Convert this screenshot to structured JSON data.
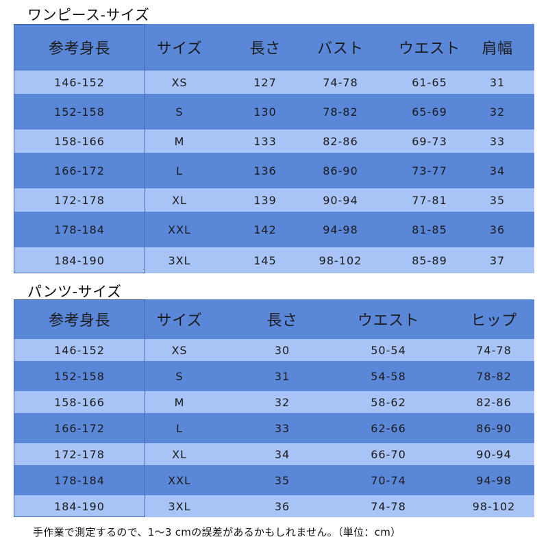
{
  "onepiece": {
    "title": "ワンピース-サイズ",
    "headers": [
      "参考身長",
      "サイズ",
      "長さ",
      "バスト",
      "ウエスト",
      "肩幅"
    ],
    "rows": [
      [
        "146-152",
        "XS",
        "127",
        "74-78",
        "61-65",
        "31"
      ],
      [
        "152-158",
        "S",
        "130",
        "78-82",
        "65-69",
        "32"
      ],
      [
        "158-166",
        "M",
        "133",
        "82-86",
        "69-73",
        "33"
      ],
      [
        "166-172",
        "L",
        "136",
        "86-90",
        "73-77",
        "34"
      ],
      [
        "172-178",
        "XL",
        "139",
        "90-94",
        "77-81",
        "35"
      ],
      [
        "178-184",
        "XXL",
        "142",
        "94-98",
        "81-85",
        "36"
      ],
      [
        "184-190",
        "3XL",
        "145",
        "98-102",
        "85-89",
        "37"
      ]
    ]
  },
  "pants": {
    "title": "パンツ-サイズ",
    "headers": [
      "参考身長",
      "サイズ",
      "長さ",
      "ウエスト",
      "ヒップ"
    ],
    "rows": [
      [
        "146-152",
        "XS",
        "30",
        "50-54",
        "74-78"
      ],
      [
        "152-158",
        "S",
        "31",
        "54-58",
        "78-82"
      ],
      [
        "158-166",
        "M",
        "32",
        "58-62",
        "82-86"
      ],
      [
        "166-172",
        "L",
        "33",
        "62-66",
        "86-90"
      ],
      [
        "172-178",
        "XL",
        "34",
        "66-70",
        "90-94"
      ],
      [
        "178-184",
        "XXL",
        "35",
        "70-74",
        "94-98"
      ],
      [
        "184-190",
        "3XL",
        "36",
        "74-78",
        "98-102"
      ]
    ]
  },
  "note": "手作業で測定するので、1〜3 cmの誤差があるかもしれません。（単位：cm）",
  "colors": {
    "dark_row": "#5b87d8",
    "light_row": "#a8c3f5",
    "text": "#1a1a1a"
  }
}
